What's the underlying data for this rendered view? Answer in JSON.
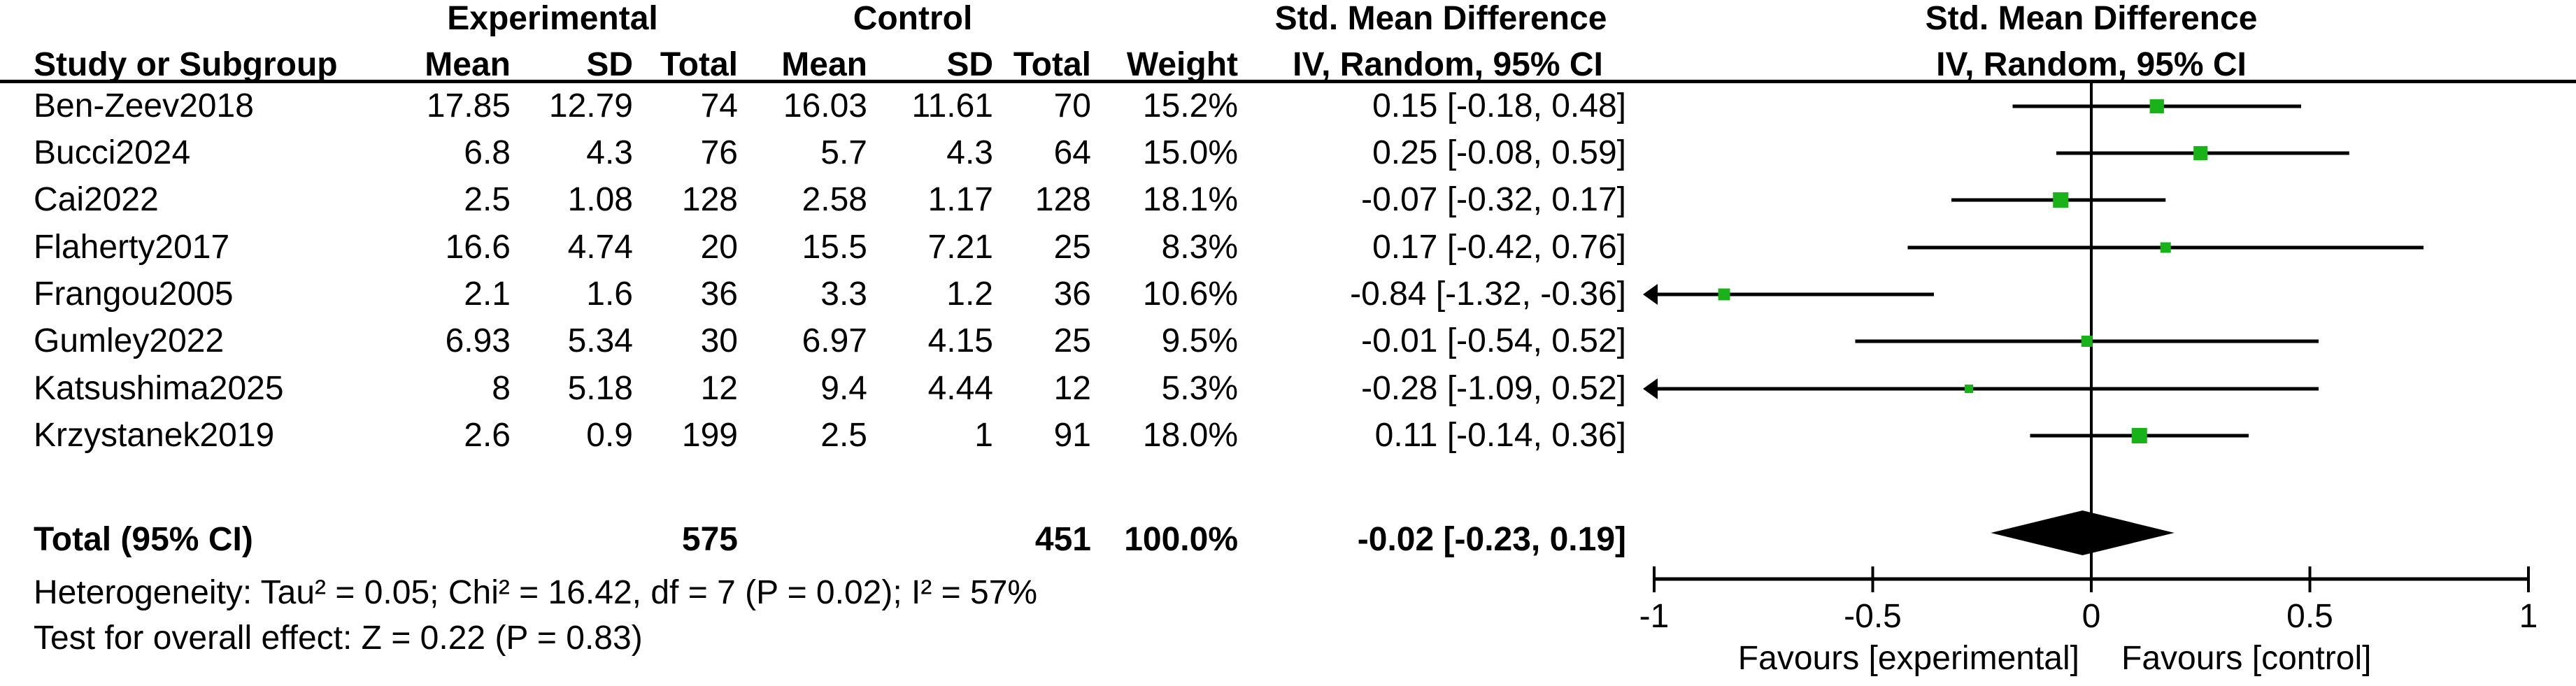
{
  "chart_data": {
    "type": "forest",
    "effect_measure": "Std. Mean Difference",
    "model": "IV, Random, 95% CI",
    "headers": {
      "group_experimental": "Experimental",
      "group_control": "Control",
      "smd_left": "Std. Mean Difference",
      "smd_right": "Std. Mean Difference",
      "study": "Study or Subgroup",
      "mean_exp": "Mean",
      "sd_exp": "SD",
      "total_exp": "Total",
      "mean_ctrl": "Mean",
      "sd_ctrl": "SD",
      "total_ctrl": "Total",
      "weight": "Weight",
      "iv_left": "IV, Random, 95% CI",
      "iv_right": "IV, Random, 95% CI"
    },
    "studies": [
      {
        "name": "Ben-Zeev2018",
        "exp_mean": "17.85",
        "exp_sd": "12.79",
        "exp_total": "74",
        "ctrl_mean": "16.03",
        "ctrl_sd": "11.61",
        "ctrl_total": "70",
        "weight": "15.2%",
        "smd_ci": "0.15 [-0.18, 0.48]",
        "est": 0.15,
        "lo": -0.18,
        "hi": 0.48,
        "weight_pct": 15.2
      },
      {
        "name": "Bucci2024",
        "exp_mean": "6.8",
        "exp_sd": "4.3",
        "exp_total": "76",
        "ctrl_mean": "5.7",
        "ctrl_sd": "4.3",
        "ctrl_total": "64",
        "weight": "15.0%",
        "smd_ci": "0.25 [-0.08, 0.59]",
        "est": 0.25,
        "lo": -0.08,
        "hi": 0.59,
        "weight_pct": 15.0
      },
      {
        "name": "Cai2022",
        "exp_mean": "2.5",
        "exp_sd": "1.08",
        "exp_total": "128",
        "ctrl_mean": "2.58",
        "ctrl_sd": "1.17",
        "ctrl_total": "128",
        "weight": "18.1%",
        "smd_ci": "-0.07 [-0.32, 0.17]",
        "est": -0.07,
        "lo": -0.32,
        "hi": 0.17,
        "weight_pct": 18.1
      },
      {
        "name": "Flaherty2017",
        "exp_mean": "16.6",
        "exp_sd": "4.74",
        "exp_total": "20",
        "ctrl_mean": "15.5",
        "ctrl_sd": "7.21",
        "ctrl_total": "25",
        "weight": "8.3%",
        "smd_ci": "0.17 [-0.42, 0.76]",
        "est": 0.17,
        "lo": -0.42,
        "hi": 0.76,
        "weight_pct": 8.3
      },
      {
        "name": "Frangou2005",
        "exp_mean": "2.1",
        "exp_sd": "1.6",
        "exp_total": "36",
        "ctrl_mean": "3.3",
        "ctrl_sd": "1.2",
        "ctrl_total": "36",
        "weight": "10.6%",
        "smd_ci": "-0.84 [-1.32, -0.36]",
        "est": -0.84,
        "lo": -1.32,
        "hi": -0.36,
        "weight_pct": 10.6
      },
      {
        "name": "Gumley2022",
        "exp_mean": "6.93",
        "exp_sd": "5.34",
        "exp_total": "30",
        "ctrl_mean": "6.97",
        "ctrl_sd": "4.15",
        "ctrl_total": "25",
        "weight": "9.5%",
        "smd_ci": "-0.01 [-0.54, 0.52]",
        "est": -0.01,
        "lo": -0.54,
        "hi": 0.52,
        "weight_pct": 9.5
      },
      {
        "name": "Katsushima2025",
        "exp_mean": "8",
        "exp_sd": "5.18",
        "exp_total": "12",
        "ctrl_mean": "9.4",
        "ctrl_sd": "4.44",
        "ctrl_total": "12",
        "weight": "5.3%",
        "smd_ci": "-0.28 [-1.09, 0.52]",
        "est": -0.28,
        "lo": -1.09,
        "hi": 0.52,
        "weight_pct": 5.3
      },
      {
        "name": "Krzystanek2019",
        "exp_mean": "2.6",
        "exp_sd": "0.9",
        "exp_total": "199",
        "ctrl_mean": "2.5",
        "ctrl_sd": "1",
        "ctrl_total": "91",
        "weight": "18.0%",
        "smd_ci": "0.11 [-0.14, 0.36]",
        "est": 0.11,
        "lo": -0.14,
        "hi": 0.36,
        "weight_pct": 18.0
      }
    ],
    "total": {
      "label": "Total (95% CI)",
      "exp_total": "575",
      "ctrl_total": "451",
      "weight": "100.0%",
      "smd_ci": "-0.02 [-0.23, 0.19]",
      "est": -0.02,
      "lo": -0.23,
      "hi": 0.19
    },
    "heterogeneity": "Heterogeneity: Tau² = 0.05; Chi² = 16.42, df = 7 (P = 0.02); I² = 57%",
    "overall_effect": "Test for overall effect: Z = 0.22 (P = 0.83)",
    "axis": {
      "min": -1,
      "max": 1,
      "ticks": [
        -1,
        -0.5,
        0,
        0.5,
        1
      ],
      "tick_labels": [
        "-1",
        "-0.5",
        "0",
        "0.5",
        "1"
      ],
      "favours_left": "Favours [experimental]",
      "favours_right": "Favours [control]"
    },
    "colors": {
      "marker_green": "#19B219",
      "line_black": "#000000"
    }
  }
}
